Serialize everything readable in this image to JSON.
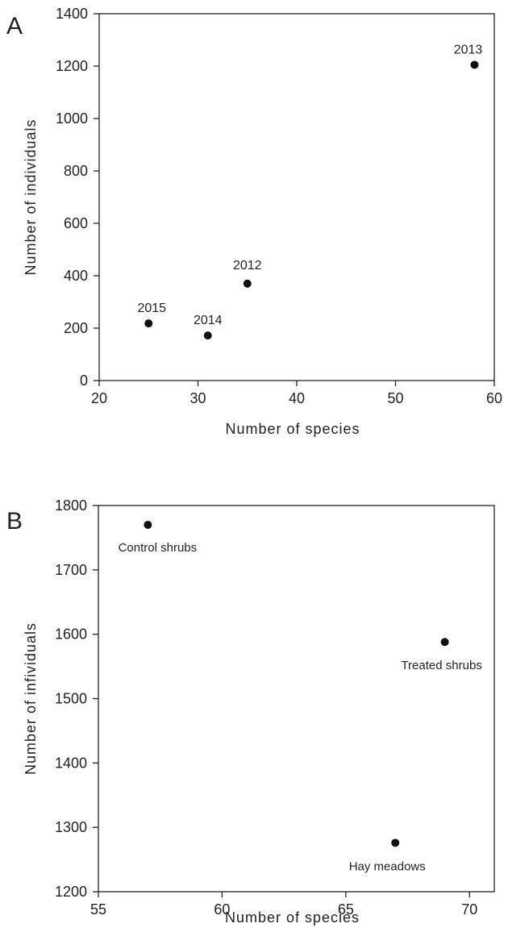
{
  "chart_data": [
    {
      "type": "scatter",
      "panel_label": "A",
      "title": "",
      "xlabel": "Number of species",
      "ylabel": "Number of individuals",
      "xlim": [
        20,
        60
      ],
      "ylim": [
        0,
        1400
      ],
      "xticks": [
        20,
        30,
        40,
        50,
        60
      ],
      "yticks": [
        0,
        200,
        400,
        600,
        800,
        1000,
        1200,
        1400
      ],
      "grid": false,
      "points": [
        {
          "label": "2012",
          "x": 35,
          "y": 370
        },
        {
          "label": "2013",
          "x": 58,
          "y": 1205
        },
        {
          "label": "2014",
          "x": 31,
          "y": 172
        },
        {
          "label": "2015",
          "x": 25,
          "y": 218
        }
      ]
    },
    {
      "type": "scatter",
      "panel_label": "B",
      "title": "",
      "xlabel": "Number of species",
      "ylabel": "Number of infividuals",
      "xlim": [
        55,
        71
      ],
      "ylim": [
        1200,
        1800
      ],
      "xticks": [
        55,
        60,
        65,
        70
      ],
      "yticks": [
        1200,
        1300,
        1400,
        1500,
        1600,
        1700,
        1800
      ],
      "grid": false,
      "points": [
        {
          "label": "Control shrubs",
          "x": 57,
          "y": 1770
        },
        {
          "label": "Treated shrubs",
          "x": 69,
          "y": 1588
        },
        {
          "label": "Hay meadows",
          "x": 67,
          "y": 1276
        }
      ]
    }
  ]
}
